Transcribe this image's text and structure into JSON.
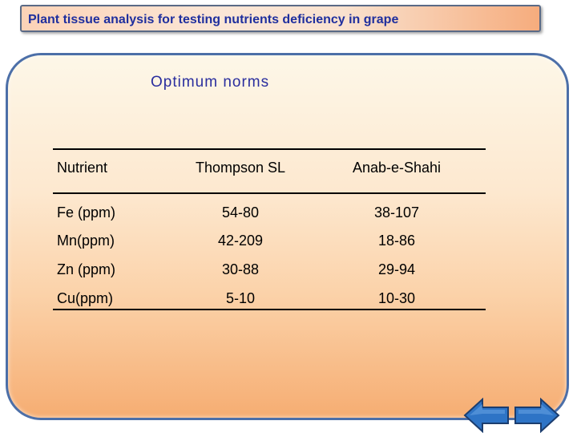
{
  "title": "Plant tissue analysis  for testing nutrients deficiency in grape",
  "subtitle": "Optimum norms",
  "table": {
    "headers": [
      "Nutrient",
      "Thompson SL",
      "Anab-e-Shahi"
    ],
    "rows": [
      [
        "Fe (ppm)",
        "54-80",
        "38-107"
      ],
      [
        "Mn(ppm)",
        "42-209",
        "18-86"
      ],
      [
        "Zn (ppm)",
        "30-88",
        "29-94"
      ],
      [
        "Cu(ppm)",
        "5-10",
        "10-30"
      ]
    ]
  },
  "colors": {
    "title_text": "#1f2f9e",
    "panel_border": "#4c6fa8",
    "nav_arrow": "#2e74c6"
  },
  "nav": {
    "back_icon": "left-arrow-icon",
    "forward_icon": "right-arrow-icon"
  }
}
